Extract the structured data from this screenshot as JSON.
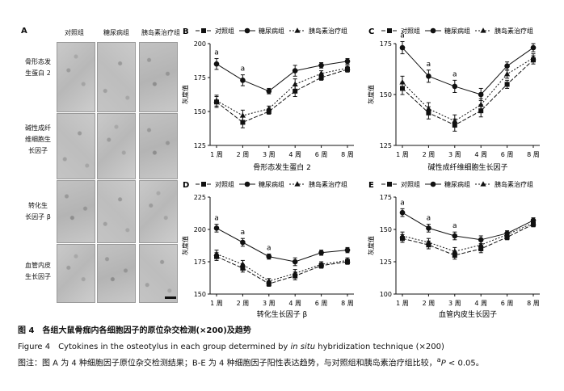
{
  "panelA": {
    "letter": "A",
    "columns": [
      "对照组",
      "糖尿病组",
      "胰岛素治疗组"
    ],
    "rows": [
      [
        "骨形态发",
        "生蛋白 2"
      ],
      [
        "碱性成纤",
        "维细胞生",
        "长因子"
      ],
      [
        "转化生",
        "长因子 β"
      ],
      [
        "血管内皮",
        "生长因子"
      ]
    ]
  },
  "chart_data": [
    {
      "letter": "B",
      "type": "line",
      "categories": [
        "1 周",
        "2 周",
        "3 周",
        "4 周",
        "6 周",
        "8 周"
      ],
      "ylabel": "灰度值",
      "xlabel": "骨形态发生蛋白 2",
      "ylim": [
        125,
        200
      ],
      "yticks": [
        125,
        150,
        175,
        200
      ],
      "legend": [
        "对照组",
        "糖尿病组",
        "胰岛素治疗组"
      ],
      "series": [
        {
          "name": "对照组",
          "values": [
            157,
            142,
            150,
            165,
            175,
            181
          ],
          "errors": [
            4,
            4,
            2,
            4,
            2,
            2
          ]
        },
        {
          "name": "糖尿病组",
          "values": [
            185,
            173,
            165,
            180,
            184,
            187
          ],
          "errors": [
            4,
            4,
            2,
            4,
            2,
            2
          ]
        },
        {
          "name": "胰岛素治疗组",
          "values": [
            158,
            147,
            152,
            170,
            178,
            182
          ],
          "errors": [
            4,
            4,
            2,
            4,
            2,
            2
          ]
        }
      ],
      "annotations": [
        {
          "index": 0,
          "text": "a"
        },
        {
          "index": 1,
          "text": "a"
        }
      ]
    },
    {
      "letter": "C",
      "type": "line",
      "categories": [
        "1 周",
        "2 周",
        "3 周",
        "4 周",
        "6 周",
        "8 周"
      ],
      "ylabel": "灰度值",
      "xlabel": "碱性成纤维细胞生长因子",
      "ylim": [
        125,
        175
      ],
      "yticks": [
        125,
        150,
        175
      ],
      "legend": [
        "对照组",
        "糖尿病组",
        "胰岛素治疗组"
      ],
      "series": [
        {
          "name": "对照组",
          "values": [
            153,
            141,
            135,
            142,
            155,
            167
          ],
          "errors": [
            3,
            3,
            3,
            3,
            2,
            2
          ]
        },
        {
          "name": "糖尿病组",
          "values": [
            173,
            159,
            154,
            150,
            164,
            173
          ],
          "errors": [
            3,
            3,
            3,
            3,
            2,
            2
          ]
        },
        {
          "name": "胰岛素治疗组",
          "values": [
            156,
            143,
            137,
            145,
            160,
            168
          ],
          "errors": [
            3,
            3,
            3,
            3,
            2,
            2
          ]
        }
      ],
      "annotations": [
        {
          "index": 0,
          "text": "a"
        },
        {
          "index": 1,
          "text": "a"
        },
        {
          "index": 2,
          "text": "a"
        }
      ]
    },
    {
      "letter": "D",
      "type": "line",
      "categories": [
        "1 周",
        "2 周",
        "3 周",
        "4 周",
        "6 周",
        "8 周"
      ],
      "ylabel": "灰度值",
      "xlabel": "转化生长因子 β",
      "ylim": [
        150,
        225
      ],
      "yticks": [
        150,
        175,
        200,
        225
      ],
      "legend": [
        "对照组",
        "糖尿病组",
        "胰岛素治疗组"
      ],
      "series": [
        {
          "name": "对照组",
          "values": [
            179,
            170,
            158,
            164,
            172,
            175
          ],
          "errors": [
            3,
            3,
            2,
            3,
            2,
            2
          ]
        },
        {
          "name": "糖尿病组",
          "values": [
            201,
            190,
            179,
            175,
            182,
            184
          ],
          "errors": [
            3,
            3,
            2,
            3,
            2,
            2
          ]
        },
        {
          "name": "胰岛素治疗组",
          "values": [
            181,
            173,
            160,
            166,
            173,
            176
          ],
          "errors": [
            3,
            3,
            2,
            3,
            2,
            2
          ]
        }
      ],
      "annotations": [
        {
          "index": 0,
          "text": "a"
        },
        {
          "index": 1,
          "text": "a"
        },
        {
          "index": 2,
          "text": "a"
        }
      ]
    },
    {
      "letter": "E",
      "type": "line",
      "categories": [
        "1 周",
        "2 周",
        "3 周",
        "4 周",
        "6 周",
        "8 周"
      ],
      "ylabel": "灰度值",
      "xlabel": "血管内皮生长因子",
      "ylim": [
        100,
        175
      ],
      "yticks": [
        100,
        125,
        150,
        175
      ],
      "legend": [
        "对照组",
        "糖尿病组",
        "胰岛素治疗组"
      ],
      "series": [
        {
          "name": "对照组",
          "values": [
            143,
            138,
            130,
            135,
            144,
            154
          ],
          "errors": [
            3,
            3,
            3,
            3,
            2,
            2
          ]
        },
        {
          "name": "糖尿病组",
          "values": [
            163,
            151,
            145,
            142,
            147,
            157
          ],
          "errors": [
            3,
            3,
            3,
            3,
            2,
            2
          ]
        },
        {
          "name": "胰岛素治疗组",
          "values": [
            145,
            140,
            133,
            138,
            146,
            155
          ],
          "errors": [
            3,
            3,
            3,
            3,
            2,
            2
          ]
        }
      ],
      "annotations": [
        {
          "index": 0,
          "text": "a"
        },
        {
          "index": 1,
          "text": "a"
        },
        {
          "index": 2,
          "text": "a"
        }
      ]
    }
  ],
  "caption": {
    "cn": "图 4　各组大鼠骨痂内各细胞因子的原位杂交检测(×200)及趋势",
    "en_prefix": "Figure 4　Cytokines in the osteotylus in each group determined by ",
    "en_italic": "in situ",
    "en_suffix": " hybridization technique (×200)",
    "note_prefix": "图注：图 A 为 4 种细胞因子原位杂交检测结果；B-E 为 4 种细胞因子阳性表达趋势，与对照组和胰岛素治疗组比较，",
    "note_sup": "a",
    "note_italic": "P",
    "note_suffix": " < 0.05。"
  }
}
